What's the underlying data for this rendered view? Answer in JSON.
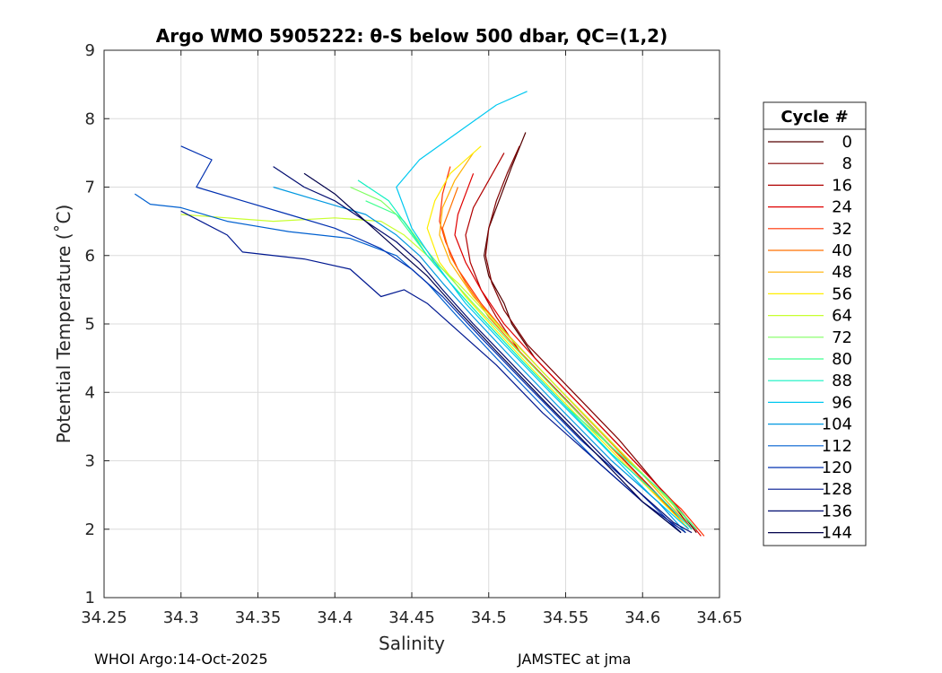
{
  "chart_data": {
    "type": "line",
    "title": "Argo WMO 5905222: θ-S below 500 dbar,  QC=(1,2)",
    "xlabel": "Salinity",
    "ylabel": "Potential Temperature (˚C)",
    "xlim": [
      34.25,
      34.65
    ],
    "ylim": [
      1,
      9
    ],
    "xticks": [
      "34.25",
      "34.3",
      "34.35",
      "34.4",
      "34.45",
      "34.5",
      "34.55",
      "34.6",
      "34.65"
    ],
    "yticks": [
      "1",
      "2",
      "3",
      "4",
      "5",
      "6",
      "7",
      "8",
      "9"
    ],
    "grid": true,
    "legend": {
      "title": "Cycle #",
      "placement": "right",
      "entries": [
        {
          "label": "0",
          "color": "#550000"
        },
        {
          "label": "8",
          "color": "#800000"
        },
        {
          "label": "16",
          "color": "#b00000"
        },
        {
          "label": "24",
          "color": "#e00000"
        },
        {
          "label": "32",
          "color": "#ff3000"
        },
        {
          "label": "40",
          "color": "#ff7000"
        },
        {
          "label": "48",
          "color": "#ffb000"
        },
        {
          "label": "56",
          "color": "#ffee00"
        },
        {
          "label": "64",
          "color": "#c8ff30"
        },
        {
          "label": "72",
          "color": "#80ff60"
        },
        {
          "label": "80",
          "color": "#40ff90"
        },
        {
          "label": "88",
          "color": "#10f0c0"
        },
        {
          "label": "96",
          "color": "#00c8f0"
        },
        {
          "label": "104",
          "color": "#0098e0"
        },
        {
          "label": "112",
          "color": "#0060d0"
        },
        {
          "label": "120",
          "color": "#0030b0"
        },
        {
          "label": "128",
          "color": "#001890"
        },
        {
          "label": "136",
          "color": "#000c70"
        },
        {
          "label": "144",
          "color": "#00004a"
        }
      ]
    },
    "series": [
      {
        "name": "0",
        "color": "#550000",
        "x": [
          34.524,
          34.515,
          34.51,
          34.505,
          34.5,
          34.497,
          34.5,
          34.51,
          34.515,
          34.53,
          34.56,
          34.59,
          34.62,
          34.635
        ],
        "y": [
          7.8,
          7.3,
          7.0,
          6.7,
          6.4,
          6.0,
          5.7,
          5.3,
          5.0,
          4.5,
          3.8,
          3.1,
          2.4,
          1.95
        ]
      },
      {
        "name": "8",
        "color": "#800000",
        "x": [
          34.52,
          34.512,
          34.505,
          34.5,
          34.498,
          34.502,
          34.51,
          34.525,
          34.555,
          34.585,
          34.615,
          34.632
        ],
        "y": [
          7.6,
          7.2,
          6.8,
          6.4,
          6.0,
          5.6,
          5.2,
          4.7,
          4.0,
          3.3,
          2.5,
          2.0
        ]
      },
      {
        "name": "16",
        "color": "#b00000",
        "x": [
          34.51,
          34.5,
          34.49,
          34.485,
          34.488,
          34.495,
          34.505,
          34.52,
          34.55,
          34.58,
          34.61,
          34.63
        ],
        "y": [
          7.5,
          7.1,
          6.7,
          6.3,
          5.9,
          5.5,
          5.1,
          4.6,
          3.9,
          3.2,
          2.5,
          2.0
        ]
      },
      {
        "name": "24",
        "color": "#e00000",
        "x": [
          34.49,
          34.485,
          34.48,
          34.478,
          34.485,
          34.495,
          34.51,
          34.53,
          34.56,
          34.59,
          34.62,
          34.638
        ],
        "y": [
          7.2,
          6.9,
          6.6,
          6.3,
          5.9,
          5.5,
          5.0,
          4.5,
          3.8,
          3.1,
          2.4,
          1.9
        ]
      },
      {
        "name": "32",
        "color": "#ff3000",
        "x": [
          34.475,
          34.47,
          34.468,
          34.472,
          34.48,
          34.495,
          34.51,
          34.535,
          34.565,
          34.595,
          34.625,
          34.64
        ],
        "y": [
          7.3,
          6.9,
          6.5,
          6.2,
          5.8,
          5.3,
          4.9,
          4.3,
          3.6,
          2.9,
          2.3,
          1.9
        ]
      },
      {
        "name": "40",
        "color": "#ff7000",
        "x": [
          34.48,
          34.475,
          34.47,
          34.475,
          34.485,
          34.5,
          34.52,
          34.545,
          34.575,
          34.605,
          34.63
        ],
        "y": [
          7.0,
          6.7,
          6.4,
          6.0,
          5.6,
          5.1,
          4.6,
          4.0,
          3.3,
          2.6,
          2.0
        ]
      },
      {
        "name": "48",
        "color": "#ffb000",
        "x": [
          34.49,
          34.478,
          34.47,
          34.468,
          34.475,
          34.49,
          34.51,
          34.535,
          34.565,
          34.6,
          34.63
        ],
        "y": [
          7.5,
          7.1,
          6.7,
          6.3,
          5.9,
          5.4,
          4.9,
          4.3,
          3.6,
          2.8,
          2.05
        ]
      },
      {
        "name": "56",
        "color": "#ffee00",
        "x": [
          34.495,
          34.475,
          34.465,
          34.46,
          34.468,
          34.485,
          34.505,
          34.53,
          34.56,
          34.595,
          34.628
        ],
        "y": [
          7.6,
          7.2,
          6.8,
          6.4,
          5.9,
          5.4,
          4.9,
          4.3,
          3.6,
          2.8,
          2.05
        ]
      },
      {
        "name": "64",
        "color": "#c8ff30",
        "x": [
          34.3,
          34.36,
          34.4,
          34.43,
          34.445,
          34.46,
          34.48,
          34.505,
          34.535,
          34.57,
          34.605,
          34.635
        ],
        "y": [
          6.6,
          6.5,
          6.55,
          6.5,
          6.3,
          6.0,
          5.6,
          5.0,
          4.3,
          3.5,
          2.7,
          2.0
        ]
      },
      {
        "name": "72",
        "color": "#80ff60",
        "x": [
          34.41,
          34.43,
          34.445,
          34.455,
          34.47,
          34.49,
          34.515,
          34.545,
          34.58,
          34.61,
          34.635
        ],
        "y": [
          7.0,
          6.8,
          6.5,
          6.2,
          5.8,
          5.3,
          4.7,
          4.0,
          3.2,
          2.6,
          2.0
        ]
      },
      {
        "name": "80",
        "color": "#40ff90",
        "x": [
          34.42,
          34.44,
          34.45,
          34.46,
          34.475,
          34.495,
          34.52,
          34.55,
          34.585,
          34.615,
          34.635
        ],
        "y": [
          6.8,
          6.6,
          6.3,
          6.0,
          5.6,
          5.1,
          4.5,
          3.8,
          3.1,
          2.5,
          2.0
        ]
      },
      {
        "name": "88",
        "color": "#10f0c0",
        "x": [
          34.415,
          34.435,
          34.448,
          34.46,
          34.475,
          34.495,
          34.52,
          34.55,
          34.58,
          34.61,
          34.632
        ],
        "y": [
          7.1,
          6.8,
          6.4,
          6.0,
          5.6,
          5.1,
          4.5,
          3.8,
          3.1,
          2.5,
          2.0
        ]
      },
      {
        "name": "96",
        "color": "#00c8f0",
        "x": [
          34.525,
          34.505,
          34.48,
          34.455,
          34.44,
          34.45,
          34.465,
          34.485,
          34.51,
          34.54,
          34.575,
          34.605,
          34.63
        ],
        "y": [
          8.4,
          8.2,
          7.8,
          7.4,
          7.0,
          6.4,
          5.9,
          5.3,
          4.7,
          4.0,
          3.2,
          2.5,
          2.0
        ]
      },
      {
        "name": "104",
        "color": "#0098e0",
        "x": [
          34.36,
          34.39,
          34.42,
          34.44,
          34.455,
          34.47,
          34.49,
          34.515,
          34.545,
          34.58,
          34.61,
          34.628
        ],
        "y": [
          7.0,
          6.8,
          6.6,
          6.3,
          6.0,
          5.6,
          5.1,
          4.5,
          3.8,
          3.0,
          2.4,
          1.95
        ]
      },
      {
        "name": "112",
        "color": "#0060d0",
        "x": [
          34.27,
          34.28,
          34.3,
          34.33,
          34.37,
          34.41,
          34.44,
          34.46,
          34.48,
          34.505,
          34.535,
          34.57,
          34.6,
          34.625
        ],
        "y": [
          6.9,
          6.75,
          6.7,
          6.5,
          6.35,
          6.25,
          6.0,
          5.6,
          5.1,
          4.5,
          3.8,
          3.0,
          2.4,
          1.95
        ]
      },
      {
        "name": "120",
        "color": "#0030b0",
        "x": [
          34.3,
          34.32,
          34.31,
          34.34,
          34.37,
          34.4,
          34.43,
          34.45,
          34.47,
          34.495,
          34.525,
          34.56,
          34.595,
          34.625
        ],
        "y": [
          7.6,
          7.4,
          7.0,
          6.8,
          6.6,
          6.4,
          6.1,
          5.8,
          5.4,
          4.8,
          4.1,
          3.3,
          2.6,
          1.95
        ]
      },
      {
        "name": "128",
        "color": "#001890",
        "x": [
          34.3,
          34.33,
          34.34,
          34.38,
          34.41,
          34.43,
          34.445,
          34.46,
          34.48,
          34.505,
          34.535,
          34.57,
          34.6,
          34.628
        ],
        "y": [
          6.65,
          6.3,
          6.05,
          5.95,
          5.8,
          5.4,
          5.5,
          5.3,
          4.9,
          4.4,
          3.7,
          3.0,
          2.4,
          1.95
        ]
      },
      {
        "name": "136",
        "color": "#000c70",
        "x": [
          34.36,
          34.38,
          34.4,
          34.42,
          34.44,
          34.455,
          34.47,
          34.49,
          34.52,
          34.555,
          34.59,
          34.62,
          34.632
        ],
        "y": [
          7.3,
          7.0,
          6.8,
          6.5,
          6.2,
          5.9,
          5.5,
          5.0,
          4.3,
          3.5,
          2.7,
          2.1,
          1.95
        ]
      },
      {
        "name": "144",
        "color": "#00004a",
        "x": [
          34.38,
          34.4,
          34.415,
          34.43,
          34.445,
          34.46,
          34.48,
          34.505,
          34.535,
          34.57,
          34.6,
          34.625
        ],
        "y": [
          7.2,
          6.9,
          6.6,
          6.3,
          6.0,
          5.7,
          5.2,
          4.6,
          3.9,
          3.1,
          2.4,
          1.95
        ]
      }
    ]
  },
  "footer": {
    "left": "WHOI Argo:14-Oct-2025",
    "right": "JAMSTEC at jma"
  }
}
